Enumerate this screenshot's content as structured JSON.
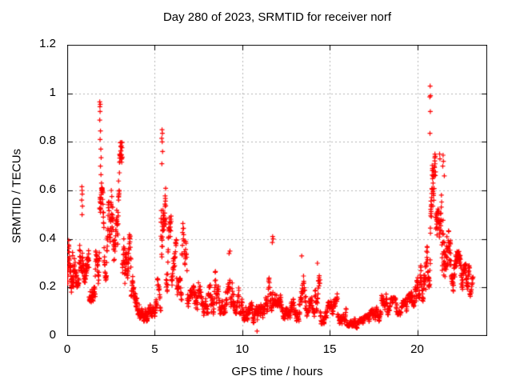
{
  "chart_data": {
    "type": "scatter",
    "title": "Day 280 of 2023, SRMTID for receiver norf",
    "xlabel": "GPS time / hours",
    "ylabel": "SRMTID / TECUs",
    "xlim": [
      0,
      24
    ],
    "ylim": [
      0,
      1.2
    ],
    "xticks": [
      0,
      5,
      10,
      15,
      20
    ],
    "xtick_labels": [
      "0",
      "5",
      "10",
      "15",
      "20"
    ],
    "yticks": [
      0,
      0.2,
      0.4,
      0.6,
      0.8,
      1,
      1.2
    ],
    "ytick_labels": [
      "0",
      "0.2",
      "0.4",
      "0.6",
      "0.8",
      "1",
      "1.2"
    ],
    "grid": true,
    "grid_style": "dotted",
    "grid_color": "#b4b4b4",
    "axis_color": "#000000",
    "background_color": "#ffffff",
    "marker": "plus",
    "marker_color": "#ff0000",
    "marker_size_px": 7,
    "legend": "none",
    "x_unit": "hours",
    "y_unit": "TECUs",
    "data_time_span_hours": [
      0,
      23.2
    ],
    "bands_format": [
      "t_start_h",
      "t_end_h",
      "y_min",
      "y_max",
      "n_points"
    ],
    "density_bands": [
      [
        0.0,
        0.3,
        0.18,
        0.4,
        40
      ],
      [
        0.3,
        0.7,
        0.2,
        0.46,
        45
      ],
      [
        0.7,
        0.95,
        0.26,
        0.52,
        30
      ],
      [
        0.95,
        1.25,
        0.18,
        0.38,
        35
      ],
      [
        1.25,
        1.6,
        0.14,
        0.33,
        40
      ],
      [
        1.6,
        1.85,
        0.2,
        0.5,
        28
      ],
      [
        1.85,
        2.1,
        0.3,
        0.62,
        30
      ],
      [
        2.1,
        2.4,
        0.22,
        0.56,
        32
      ],
      [
        2.4,
        2.7,
        0.18,
        0.6,
        32
      ],
      [
        2.7,
        2.9,
        0.24,
        0.52,
        22
      ],
      [
        2.9,
        3.15,
        0.3,
        0.8,
        35
      ],
      [
        3.15,
        3.4,
        0.18,
        0.55,
        30
      ],
      [
        3.4,
        3.65,
        0.14,
        0.42,
        28
      ],
      [
        3.65,
        3.95,
        0.1,
        0.3,
        30
      ],
      [
        3.95,
        4.35,
        0.07,
        0.22,
        40
      ],
      [
        4.35,
        4.75,
        0.06,
        0.18,
        40
      ],
      [
        4.75,
        5.15,
        0.08,
        0.2,
        35
      ],
      [
        5.15,
        5.35,
        0.1,
        0.35,
        18
      ],
      [
        5.35,
        5.65,
        0.28,
        0.72,
        40
      ],
      [
        5.65,
        5.95,
        0.18,
        0.5,
        30
      ],
      [
        5.95,
        6.25,
        0.14,
        0.4,
        28
      ],
      [
        6.25,
        6.55,
        0.12,
        0.3,
        28
      ],
      [
        6.55,
        6.85,
        0.14,
        0.47,
        24
      ],
      [
        6.85,
        7.25,
        0.09,
        0.26,
        32
      ],
      [
        7.25,
        7.65,
        0.1,
        0.3,
        32
      ],
      [
        7.65,
        8.05,
        0.08,
        0.26,
        34
      ],
      [
        8.05,
        8.55,
        0.08,
        0.3,
        40
      ],
      [
        8.55,
        9.05,
        0.09,
        0.26,
        36
      ],
      [
        9.05,
        9.55,
        0.12,
        0.35,
        40
      ],
      [
        9.55,
        9.95,
        0.09,
        0.3,
        30
      ],
      [
        9.95,
        10.35,
        0.06,
        0.2,
        34
      ],
      [
        10.35,
        10.85,
        0.05,
        0.16,
        40
      ],
      [
        10.85,
        11.35,
        0.06,
        0.22,
        40
      ],
      [
        11.35,
        11.7,
        0.1,
        0.3,
        30
      ],
      [
        11.7,
        12.25,
        0.12,
        0.38,
        45
      ],
      [
        12.25,
        12.8,
        0.07,
        0.2,
        42
      ],
      [
        12.8,
        13.25,
        0.06,
        0.2,
        36
      ],
      [
        13.25,
        13.65,
        0.08,
        0.31,
        32
      ],
      [
        13.65,
        14.15,
        0.06,
        0.2,
        38
      ],
      [
        14.15,
        14.45,
        0.08,
        0.29,
        24
      ],
      [
        14.45,
        14.95,
        0.05,
        0.17,
        40
      ],
      [
        14.95,
        15.45,
        0.06,
        0.18,
        40
      ],
      [
        15.45,
        15.95,
        0.05,
        0.16,
        40
      ],
      [
        15.95,
        16.45,
        0.04,
        0.13,
        40
      ],
      [
        16.45,
        16.95,
        0.03,
        0.11,
        40
      ],
      [
        16.95,
        17.45,
        0.04,
        0.13,
        38
      ],
      [
        17.45,
        17.95,
        0.06,
        0.18,
        34
      ],
      [
        17.95,
        18.35,
        0.08,
        0.22,
        30
      ],
      [
        18.35,
        18.85,
        0.06,
        0.16,
        34
      ],
      [
        18.85,
        19.35,
        0.08,
        0.2,
        34
      ],
      [
        19.35,
        19.75,
        0.1,
        0.25,
        32
      ],
      [
        19.75,
        20.15,
        0.12,
        0.31,
        36
      ],
      [
        20.15,
        20.5,
        0.14,
        0.42,
        32
      ],
      [
        20.5,
        20.75,
        0.2,
        0.58,
        26
      ],
      [
        20.75,
        21.05,
        0.3,
        0.75,
        45
      ],
      [
        21.05,
        21.4,
        0.28,
        0.68,
        42
      ],
      [
        21.4,
        21.75,
        0.24,
        0.6,
        42
      ],
      [
        21.75,
        22.15,
        0.18,
        0.45,
        42
      ],
      [
        22.15,
        22.55,
        0.14,
        0.35,
        42
      ],
      [
        22.55,
        23.0,
        0.12,
        0.3,
        46
      ],
      [
        23.0,
        23.2,
        0.14,
        0.28,
        14
      ]
    ],
    "outlier_points": [
      [
        0.84,
        0.615
      ],
      [
        0.85,
        0.6
      ],
      [
        0.86,
        0.585
      ],
      [
        0.83,
        0.56
      ],
      [
        0.87,
        0.535
      ],
      [
        0.85,
        0.5
      ],
      [
        1.86,
        0.965
      ],
      [
        1.89,
        0.955
      ],
      [
        1.87,
        0.945
      ],
      [
        1.88,
        0.925
      ],
      [
        1.86,
        0.89
      ],
      [
        1.9,
        0.845
      ],
      [
        1.88,
        0.81
      ],
      [
        1.92,
        0.77
      ],
      [
        1.94,
        0.735
      ],
      [
        1.9,
        0.7
      ],
      [
        1.93,
        0.665
      ],
      [
        1.96,
        0.63
      ],
      [
        2.52,
        0.6
      ],
      [
        2.55,
        0.575
      ],
      [
        2.5,
        0.55
      ],
      [
        5.42,
        0.85
      ],
      [
        5.44,
        0.835
      ],
      [
        5.4,
        0.815
      ],
      [
        5.43,
        0.8
      ],
      [
        5.45,
        0.76
      ],
      [
        5.41,
        0.71
      ],
      [
        9.3,
        0.35
      ],
      [
        9.25,
        0.34
      ],
      [
        10.85,
        0.02
      ],
      [
        11.74,
        0.41
      ],
      [
        11.77,
        0.4
      ],
      [
        11.72,
        0.385
      ],
      [
        13.4,
        0.33
      ],
      [
        14.3,
        0.3
      ],
      [
        20.74,
        1.03
      ],
      [
        20.76,
        0.99
      ],
      [
        20.72,
        0.985
      ],
      [
        20.75,
        0.925
      ],
      [
        20.73,
        0.835
      ],
      [
        21.28,
        0.75
      ],
      [
        21.3,
        0.73
      ],
      [
        21.48,
        0.745
      ],
      [
        21.5,
        0.72
      ],
      [
        21.46,
        0.7
      ],
      [
        21.55,
        0.66
      ]
    ]
  }
}
